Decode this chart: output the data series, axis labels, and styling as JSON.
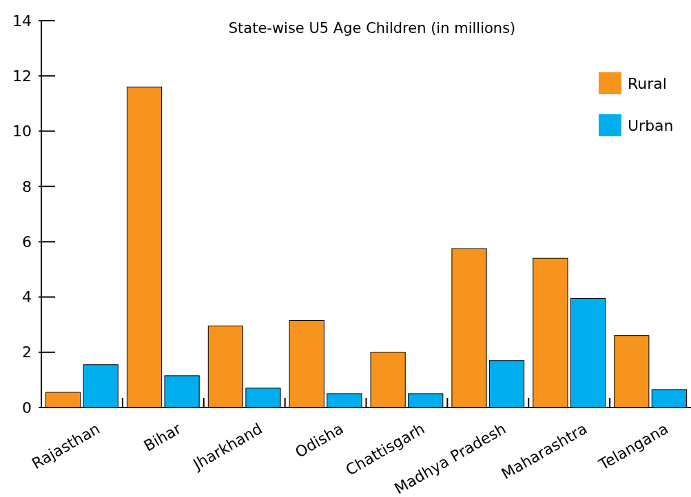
{
  "chart_data": {
    "type": "bar",
    "title": "State-wise U5 Age Children (in millions)",
    "categories": [
      "Rajasthan",
      "Bihar",
      "Jharkhand",
      "Odisha",
      "Chattisgarh",
      "Madhya Pradesh",
      "Maharashtra",
      "Telangana"
    ],
    "series": [
      {
        "name": "Rural",
        "color": "#f7941d",
        "values": [
          0.55,
          11.6,
          2.95,
          3.15,
          2,
          5.75,
          5.4,
          2.6
        ]
      },
      {
        "name": "Urban",
        "color": "#00aeef",
        "values": [
          1.55,
          1.15,
          0.7,
          0.5,
          0.5,
          1.7,
          3.95,
          0.65
        ]
      }
    ],
    "ylim": [
      0,
      14
    ],
    "yticks": [
      0,
      2,
      4,
      6,
      8,
      10,
      12,
      14
    ],
    "grid": false,
    "legend": "top right"
  }
}
